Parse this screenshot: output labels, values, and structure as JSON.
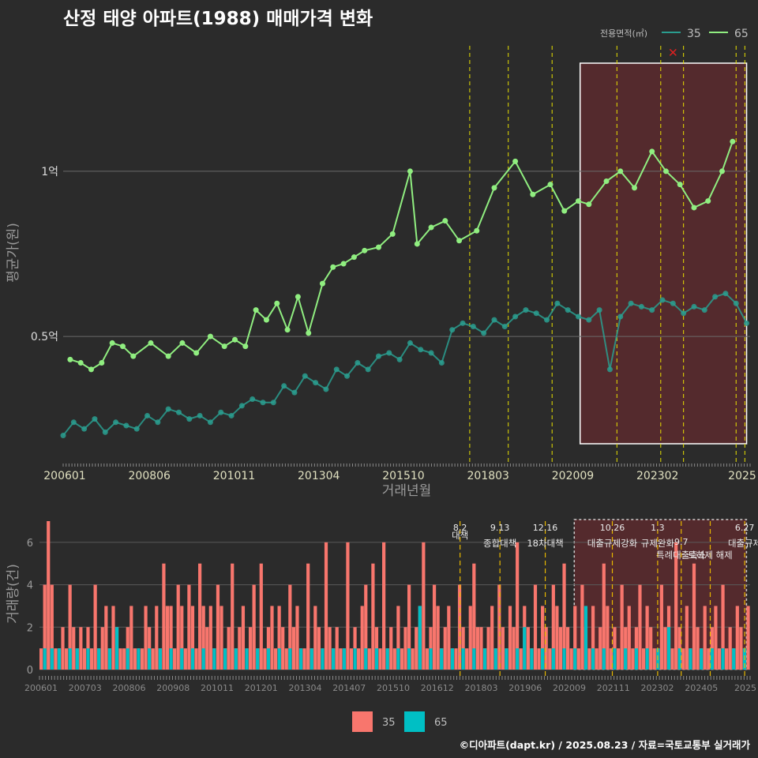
{
  "title": "산정 태양 아파트(1988) 매매가격 변화",
  "credit": "©디아파트(dapt.kr) / 2025.08.23 / 자료=국토교통부 실거래가",
  "colors": {
    "s35": "#2a9d8f",
    "s65": "#90ee80",
    "bar35": "#f8766d",
    "bar65": "#00bfc4",
    "vline": "#e8e000",
    "vlineBar": "#e8b800",
    "highlight": "#5c2a2e"
  },
  "chart_data": [
    {
      "type": "line",
      "xlabel": "거래년월",
      "ylabel": "평균가(원)",
      "x_ticks": [
        "200601",
        "200806",
        "201011",
        "201304",
        "201510",
        "201803",
        "202009",
        "202302",
        "2025"
      ],
      "y_ticks": [
        {
          "value": 0.5,
          "label": "0.5억"
        },
        {
          "value": 1.0,
          "label": "1억"
        }
      ],
      "ylim": [
        0.12,
        1.38
      ],
      "xlim": [
        2006.0,
        2025.6
      ],
      "legend_title": "전용면적(㎡)",
      "legend_position": "top-right",
      "grid": true,
      "highlight_range": [
        2020.75,
        2025.5
      ],
      "marker_x": {
        "x": 2023.4,
        "y": 1.36
      },
      "policy_lines": [
        2017.6,
        2018.7,
        2019.95,
        2021.8,
        2023.05,
        2023.7,
        2025.2,
        2025.45
      ],
      "series": [
        {
          "name": "35",
          "x": [
            2006.0,
            2006.3,
            2006.6,
            2006.9,
            2007.2,
            2007.5,
            2007.8,
            2008.1,
            2008.4,
            2008.7,
            2009.0,
            2009.3,
            2009.6,
            2009.9,
            2010.2,
            2010.5,
            2010.8,
            2011.1,
            2011.4,
            2011.7,
            2012.0,
            2012.3,
            2012.6,
            2012.9,
            2013.2,
            2013.5,
            2013.8,
            2014.1,
            2014.4,
            2014.7,
            2015.0,
            2015.3,
            2015.6,
            2015.9,
            2016.2,
            2016.5,
            2016.8,
            2017.1,
            2017.4,
            2017.7,
            2018.0,
            2018.3,
            2018.6,
            2018.9,
            2019.2,
            2019.5,
            2019.8,
            2020.1,
            2020.4,
            2020.7,
            2021.0,
            2021.3,
            2021.6,
            2021.9,
            2022.2,
            2022.5,
            2022.8,
            2023.1,
            2023.4,
            2023.7,
            2024.0,
            2024.3,
            2024.6,
            2024.9,
            2025.2,
            2025.5
          ],
          "y": [
            0.2,
            0.24,
            0.22,
            0.25,
            0.21,
            0.24,
            0.23,
            0.22,
            0.26,
            0.24,
            0.28,
            0.27,
            0.25,
            0.26,
            0.24,
            0.27,
            0.26,
            0.29,
            0.31,
            0.3,
            0.3,
            0.35,
            0.33,
            0.38,
            0.36,
            0.34,
            0.4,
            0.38,
            0.42,
            0.4,
            0.44,
            0.45,
            0.43,
            0.48,
            0.46,
            0.45,
            0.42,
            0.52,
            0.54,
            0.53,
            0.51,
            0.55,
            0.53,
            0.56,
            0.58,
            0.57,
            0.55,
            0.6,
            0.58,
            0.56,
            0.55,
            0.58,
            0.4,
            0.56,
            0.6,
            0.59,
            0.58,
            0.61,
            0.6,
            0.57,
            0.59,
            0.58,
            0.62,
            0.63,
            0.6,
            0.54
          ]
        },
        {
          "name": "65",
          "x": [
            2006.2,
            2006.5,
            2006.8,
            2007.1,
            2007.4,
            2007.7,
            2008.0,
            2008.5,
            2009.0,
            2009.4,
            2009.8,
            2010.2,
            2010.6,
            2010.9,
            2011.2,
            2011.5,
            2011.8,
            2012.1,
            2012.4,
            2012.7,
            2013.0,
            2013.4,
            2013.7,
            2014.0,
            2014.3,
            2014.6,
            2015.0,
            2015.4,
            2015.9,
            2016.1,
            2016.5,
            2016.9,
            2017.3,
            2017.8,
            2018.3,
            2018.9,
            2019.4,
            2019.9,
            2020.3,
            2020.7,
            2021.0,
            2021.5,
            2021.9,
            2022.3,
            2022.8,
            2023.2,
            2023.6,
            2024.0,
            2024.4,
            2024.8,
            2025.1
          ],
          "y": [
            0.43,
            0.42,
            0.4,
            0.42,
            0.48,
            0.47,
            0.44,
            0.48,
            0.44,
            0.48,
            0.45,
            0.5,
            0.47,
            0.49,
            0.47,
            0.58,
            0.55,
            0.6,
            0.52,
            0.62,
            0.51,
            0.66,
            0.71,
            0.72,
            0.74,
            0.76,
            0.77,
            0.81,
            1.0,
            0.78,
            0.83,
            0.85,
            0.79,
            0.82,
            0.95,
            1.03,
            0.93,
            0.96,
            0.88,
            0.91,
            0.9,
            0.97,
            1.0,
            0.95,
            1.06,
            1.0,
            0.96,
            0.89,
            0.91,
            1.0,
            1.09
          ]
        }
      ]
    },
    {
      "type": "bar",
      "ylabel": "거래량(건)",
      "y_ticks": [
        0,
        2,
        4,
        6
      ],
      "ylim": [
        0,
        7
      ],
      "x_ticks": [
        "200601",
        "200703",
        "200806",
        "200908",
        "201011",
        "201201",
        "201304",
        "201407",
        "201510",
        "201612",
        "201803",
        "201906",
        "202009",
        "202111",
        "202302",
        "202405",
        "2025"
      ],
      "highlight_range": [
        2020.75,
        2025.5
      ],
      "policy_annotations": [
        {
          "x": 2017.6,
          "date": "8.2",
          "label": "대책"
        },
        {
          "x": 2018.7,
          "date": "9.13",
          "label": "종합대책"
        },
        {
          "x": 2019.95,
          "date": "12.16",
          "label": "18차대책"
        },
        {
          "x": 2021.8,
          "date": "10.26",
          "label": "대출규제강화"
        },
        {
          "x": 2023.05,
          "date": "1.3",
          "label": "규제완화"
        },
        {
          "x": 2023.7,
          "date": "9.7",
          "label": "특례대출축소"
        },
        {
          "x": 2024.5,
          "date": "",
          "label": "토허제 해제"
        },
        {
          "x": 2025.45,
          "date": "6.27",
          "label": "대출규제"
        }
      ],
      "series": [
        {
          "name": "35",
          "values": [
            1,
            4,
            7,
            4,
            1,
            1,
            2,
            1,
            4,
            2,
            1,
            2,
            1,
            2,
            1,
            4,
            1,
            2,
            3,
            1,
            3,
            2,
            1,
            1,
            2,
            3,
            1,
            1,
            1,
            3,
            2,
            1,
            3,
            1,
            5,
            3,
            3,
            1,
            4,
            3,
            1,
            4,
            3,
            1,
            5,
            3,
            2,
            3,
            1,
            4,
            3,
            1,
            2,
            5,
            1,
            2,
            3,
            1,
            2,
            4,
            1,
            5,
            1,
            2,
            3,
            1,
            3,
            2,
            1,
            4,
            2,
            3,
            1,
            1,
            5,
            1,
            3,
            2,
            1,
            6,
            2,
            1,
            2,
            1,
            1,
            6,
            1,
            2,
            1,
            3,
            4,
            1,
            5,
            2,
            1,
            6,
            1,
            2,
            1,
            3,
            1,
            2,
            4,
            1,
            2,
            3,
            6,
            1,
            2,
            4,
            3,
            1,
            2,
            3,
            1,
            1,
            4,
            2,
            1,
            3,
            5,
            2,
            2,
            1,
            2,
            3,
            1,
            4,
            2,
            1,
            3,
            2,
            6,
            1,
            3,
            2,
            1,
            4,
            1,
            3,
            2,
            1,
            4,
            3,
            2,
            5,
            2,
            1,
            3,
            1,
            4,
            2,
            1,
            3,
            1,
            2,
            5,
            3,
            1,
            2,
            1,
            4,
            2,
            3,
            1,
            2,
            4,
            1,
            3,
            2,
            1,
            1,
            4,
            2,
            3,
            1,
            6,
            2,
            1,
            3,
            1,
            5,
            2,
            1,
            3,
            1,
            2,
            3,
            1,
            4,
            1,
            2,
            1,
            3,
            2,
            1,
            3
          ]
        },
        {
          "name": "65",
          "values": [
            0,
            1,
            0,
            1,
            0,
            1,
            0,
            0,
            1,
            0,
            1,
            0,
            0,
            1,
            0,
            0,
            1,
            0,
            0,
            1,
            0,
            2,
            0,
            0,
            1,
            0,
            0,
            1,
            0,
            0,
            1,
            0,
            0,
            1,
            0,
            0,
            1,
            0,
            0,
            1,
            0,
            0,
            1,
            0,
            0,
            1,
            0,
            0,
            1,
            0,
            0,
            1,
            0,
            0,
            1,
            0,
            0,
            1,
            0,
            0,
            1,
            0,
            0,
            1,
            0,
            0,
            1,
            0,
            0,
            1,
            0,
            0,
            1,
            0,
            0,
            1,
            0,
            0,
            1,
            0,
            0,
            1,
            0,
            0,
            1,
            0,
            0,
            1,
            0,
            0,
            1,
            0,
            0,
            1,
            0,
            0,
            1,
            0,
            0,
            1,
            0,
            0,
            1,
            0,
            0,
            3,
            0,
            0,
            1,
            0,
            0,
            1,
            0,
            0,
            1,
            0,
            0,
            1,
            0,
            0,
            1,
            0,
            0,
            1,
            0,
            0,
            1,
            0,
            0,
            1,
            0,
            0,
            1,
            0,
            2,
            0,
            1,
            0,
            0,
            1,
            0,
            0,
            1,
            0,
            0,
            1,
            0,
            0,
            1,
            0,
            0,
            3,
            0,
            1,
            0,
            0,
            1,
            0,
            0,
            1,
            0,
            0,
            1,
            0,
            0,
            1,
            0,
            0,
            1,
            0,
            0,
            1,
            0,
            0,
            2,
            0,
            0,
            1,
            0,
            0,
            1,
            0,
            0,
            1,
            0,
            0,
            1,
            0,
            0,
            1,
            0,
            0,
            1,
            0,
            0,
            1,
            0
          ]
        }
      ]
    }
  ]
}
